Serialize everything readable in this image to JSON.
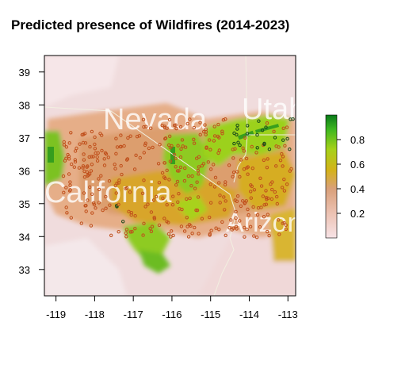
{
  "title": "Predicted presence of Wildfires (2014-2023)",
  "map": {
    "x_ticks": [
      "-119",
      "-118",
      "-117",
      "-116",
      "-115",
      "-114",
      "-113"
    ],
    "y_ticks": [
      "33",
      "34",
      "35",
      "36",
      "37",
      "38",
      "39"
    ],
    "xlim": [
      -119.3,
      -112.8
    ],
    "ylim": [
      32.2,
      39.5
    ],
    "state_labels": [
      "Nevada",
      "Utah",
      "California",
      "Arizona"
    ],
    "colors": {
      "low": "#f7e3e6",
      "mid_low": "#e9b28f",
      "mid": "#d9a71c",
      "mid_high": "#a6d11a",
      "high": "#0a7a1a",
      "points": "#c0501c",
      "points_dark": "#1a4a1a",
      "border": "#f2efe0"
    },
    "occurrence_points_description": "brown circle markers for fire occurrences, dark green circles in high-probability areas"
  },
  "legend": {
    "type": "continuous colour bar",
    "range": [
      0,
      1
    ],
    "tick_labels": [
      "0.8",
      "0.6",
      "0.4",
      "0.2"
    ],
    "tick_values": [
      0.8,
      0.6,
      0.4,
      0.2
    ]
  }
}
